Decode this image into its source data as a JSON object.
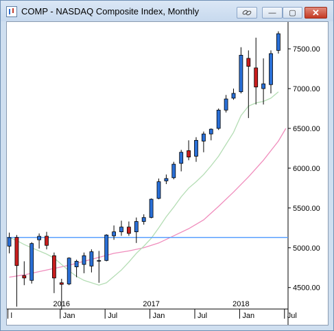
{
  "window": {
    "title": "COMP - NASDAQ Composite Index, Monthly",
    "buttons": {
      "link_icon": "link-icon",
      "minimize": "—",
      "maximize": "▢",
      "close": "✕"
    }
  },
  "chart_data": {
    "type": "candlestick",
    "y_ticks": [
      "4500.00",
      "5000.00",
      "5500.00",
      "6000.00",
      "6500.00",
      "7000.00",
      "7500.00"
    ],
    "year_labels": [
      {
        "text": "2016",
        "month_index": 7
      },
      {
        "text": "2017",
        "month_index": 19
      },
      {
        "text": "2018",
        "month_index": 31
      }
    ],
    "month_labels": [
      {
        "text": "l",
        "month_index": 0
      },
      {
        "text": "Jan",
        "month_index": 7
      },
      {
        "text": "Jul",
        "month_index": 13
      },
      {
        "text": "Jan",
        "month_index": 19
      },
      {
        "text": "Jul",
        "month_index": 25
      },
      {
        "text": "Jan",
        "month_index": 31
      },
      {
        "text": "Jul",
        "month_index": 37
      }
    ],
    "ylim": [
      4230,
      7820
    ],
    "horizontal_line": 5130,
    "up_color": "#2a6fd6",
    "down_color": "#c81e1e",
    "ma_short_color": "#b4ddb4",
    "ma_long_color": "#f08cbc",
    "hline_color": "#5aa0ff",
    "candles": [
      {
        "o": 5020,
        "h": 5190,
        "l": 4930,
        "c": 5128
      },
      {
        "o": 5130,
        "h": 5160,
        "l": 4260,
        "c": 4776
      },
      {
        "o": 4650,
        "h": 4830,
        "l": 4530,
        "c": 4620
      },
      {
        "o": 4590,
        "h": 5070,
        "l": 4550,
        "c": 5053
      },
      {
        "o": 5100,
        "h": 5180,
        "l": 4990,
        "c": 5144
      },
      {
        "o": 5145,
        "h": 5200,
        "l": 4980,
        "c": 5030
      },
      {
        "o": 4900,
        "h": 4940,
        "l": 4430,
        "c": 4620
      },
      {
        "o": 4560,
        "h": 4610,
        "l": 4220,
        "c": 4540
      },
      {
        "o": 4545,
        "h": 4880,
        "l": 4530,
        "c": 4870
      },
      {
        "o": 4760,
        "h": 4850,
        "l": 4630,
        "c": 4830
      },
      {
        "o": 4790,
        "h": 4940,
        "l": 4680,
        "c": 4900
      },
      {
        "o": 4770,
        "h": 4980,
        "l": 4690,
        "c": 4950
      },
      {
        "o": 4840,
        "h": 4960,
        "l": 4560,
        "c": 4840
      },
      {
        "o": 4840,
        "h": 5170,
        "l": 4830,
        "c": 5160
      },
      {
        "o": 5150,
        "h": 5280,
        "l": 5100,
        "c": 5200
      },
      {
        "o": 5200,
        "h": 5340,
        "l": 5150,
        "c": 5260
      },
      {
        "o": 5260,
        "h": 5330,
        "l": 5150,
        "c": 5180
      },
      {
        "o": 5200,
        "h": 5380,
        "l": 5060,
        "c": 5330
      },
      {
        "o": 5330,
        "h": 5420,
        "l": 5290,
        "c": 5380
      },
      {
        "o": 5380,
        "h": 5620,
        "l": 5370,
        "c": 5610
      },
      {
        "o": 5620,
        "h": 5870,
        "l": 5610,
        "c": 5830
      },
      {
        "o": 5840,
        "h": 5920,
        "l": 5800,
        "c": 5870
      },
      {
        "o": 5880,
        "h": 6080,
        "l": 5860,
        "c": 6050
      },
      {
        "o": 6060,
        "h": 6230,
        "l": 5960,
        "c": 6200
      },
      {
        "o": 6220,
        "h": 6350,
        "l": 6100,
        "c": 6140
      },
      {
        "o": 6150,
        "h": 6390,
        "l": 6080,
        "c": 6350
      },
      {
        "o": 6340,
        "h": 6460,
        "l": 6200,
        "c": 6430
      },
      {
        "o": 6430,
        "h": 6500,
        "l": 6350,
        "c": 6490
      },
      {
        "o": 6500,
        "h": 6750,
        "l": 6480,
        "c": 6730
      },
      {
        "o": 6730,
        "h": 6920,
        "l": 6700,
        "c": 6870
      },
      {
        "o": 6880,
        "h": 7000,
        "l": 6860,
        "c": 6940
      },
      {
        "o": 6960,
        "h": 7520,
        "l": 6940,
        "c": 7420
      },
      {
        "o": 7380,
        "h": 7480,
        "l": 6630,
        "c": 7280
      },
      {
        "o": 7260,
        "h": 7640,
        "l": 6800,
        "c": 7020
      },
      {
        "o": 7000,
        "h": 7380,
        "l": 6800,
        "c": 7060
      },
      {
        "o": 7050,
        "h": 7480,
        "l": 6940,
        "c": 7440
      },
      {
        "o": 7480,
        "h": 7720,
        "l": 7440,
        "c": 7690
      }
    ],
    "ma_short": [
      [
        0,
        5130
      ],
      [
        1,
        5090
      ],
      [
        2,
        5040
      ],
      [
        3,
        5000
      ],
      [
        4,
        4960
      ],
      [
        5,
        4920
      ],
      [
        6,
        4870
      ],
      [
        7,
        4790
      ],
      [
        8,
        4710
      ],
      [
        9,
        4640
      ],
      [
        10,
        4590
      ],
      [
        11,
        4560
      ],
      [
        12,
        4530
      ],
      [
        13,
        4560
      ],
      [
        14,
        4640
      ],
      [
        15,
        4720
      ],
      [
        16,
        4820
      ],
      [
        17,
        4930
      ],
      [
        18,
        5020
      ],
      [
        19,
        5120
      ],
      [
        20,
        5250
      ],
      [
        21,
        5390
      ],
      [
        22,
        5510
      ],
      [
        23,
        5640
      ],
      [
        24,
        5750
      ],
      [
        25,
        5830
      ],
      [
        26,
        5920
      ],
      [
        27,
        6030
      ],
      [
        28,
        6150
      ],
      [
        29,
        6300
      ],
      [
        30,
        6450
      ],
      [
        31,
        6660
      ],
      [
        32,
        6780
      ],
      [
        33,
        6820
      ],
      [
        34,
        6840
      ],
      [
        35,
        6880
      ],
      [
        36,
        6960
      ]
    ],
    "ma_long": [
      [
        0,
        4630
      ],
      [
        2,
        4660
      ],
      [
        4,
        4700
      ],
      [
        6,
        4740
      ],
      [
        8,
        4780
      ],
      [
        10,
        4830
      ],
      [
        12,
        4880
      ],
      [
        14,
        4930
      ],
      [
        16,
        4960
      ],
      [
        18,
        5000
      ],
      [
        20,
        5060
      ],
      [
        22,
        5150
      ],
      [
        24,
        5240
      ],
      [
        26,
        5350
      ],
      [
        28,
        5520
      ],
      [
        30,
        5700
      ],
      [
        32,
        5890
      ],
      [
        34,
        6100
      ],
      [
        35,
        6220
      ],
      [
        36,
        6340
      ],
      [
        37,
        6500
      ]
    ]
  }
}
